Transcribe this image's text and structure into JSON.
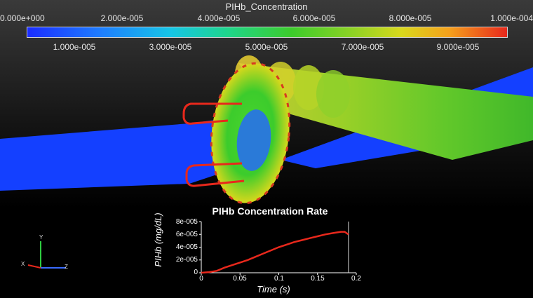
{
  "colorbar": {
    "title": "PIHb_Concentration",
    "top_ticks": [
      "0.000e+000",
      "2.000e-005",
      "4.000e-005",
      "6.000e-005",
      "8.000e-005",
      "1.000e-004"
    ],
    "bottom_ticks": [
      "1.000e-005",
      "3.000e-005",
      "5.000e-005",
      "7.000e-005",
      "9.000e-005"
    ],
    "range": [
      0,
      0.0001
    ],
    "colors": [
      "#1a2cff",
      "#16c6e6",
      "#3ccc2c",
      "#d8d81c",
      "#e8281c"
    ]
  },
  "axes_triad": {
    "x": "X",
    "y": "Y",
    "z": "Z"
  },
  "chart_data": {
    "type": "line",
    "title": "PIHb Concentration Rate",
    "xlabel": "Time (s)",
    "ylabel": "PIHb (mg/dL)",
    "xlim": [
      0,
      0.2
    ],
    "ylim": [
      0,
      8e-05
    ],
    "x_ticks": [
      "0",
      "0.05",
      "0.1",
      "0.15",
      "0.2"
    ],
    "y_ticks": [
      "0",
      "2e-005",
      "4e-005",
      "6e-005",
      "8e-005"
    ],
    "series": [
      {
        "color": "#e8281c",
        "x": [
          0,
          0.01,
          0.02,
          0.03,
          0.04,
          0.05,
          0.06,
          0.07,
          0.08,
          0.09,
          0.1,
          0.11,
          0.12,
          0.13,
          0.14,
          0.15,
          0.16,
          0.17,
          0.18,
          0.185,
          0.19
        ],
        "y": [
          0,
          1e-06,
          3e-06,
          8e-06,
          1.2e-05,
          1.6e-05,
          2e-05,
          2.5e-05,
          3e-05,
          3.5e-05,
          4e-05,
          4.4e-05,
          4.8e-05,
          5.1e-05,
          5.4e-05,
          5.7e-05,
          6e-05,
          6.2e-05,
          6.4e-05,
          6.4e-05,
          6e-05
        ]
      }
    ],
    "marker_x": 0.19
  }
}
